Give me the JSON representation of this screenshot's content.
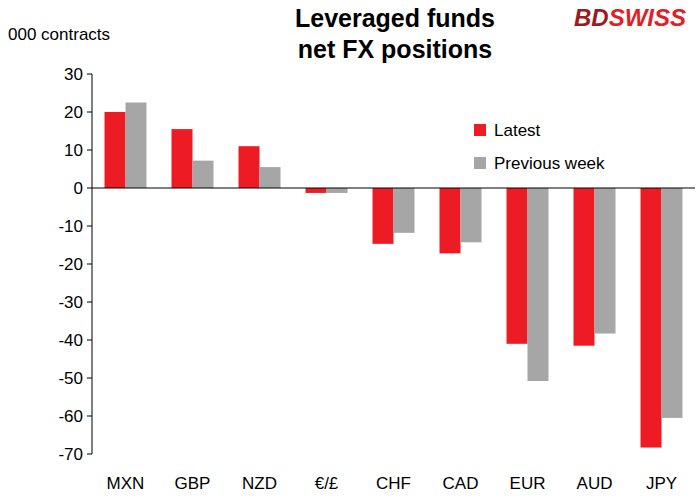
{
  "chart_data": {
    "type": "bar",
    "title": "Leveraged funds net FX positions",
    "ylabel": "000 contracts",
    "annotations": [
      "BDSWISS"
    ],
    "categories": [
      "MXN",
      "GBP",
      "NZD",
      "€/£",
      "CHF",
      "CAD",
      "EUR",
      "AUD",
      "JPY"
    ],
    "series": [
      {
        "name": "Latest",
        "color": "#ed1c24",
        "values": [
          20,
          15.5,
          11,
          -1.3,
          -14.7,
          -17.2,
          -41,
          -41.5,
          -68.3
        ]
      },
      {
        "name": "Previous week",
        "color": "#a6a6a6",
        "values": [
          22.5,
          7.2,
          5.5,
          -1.3,
          -11.8,
          -14.3,
          -50.8,
          -38.3,
          -60.5
        ]
      }
    ],
    "ylim": [
      -70,
      30
    ],
    "yticks": [
      -70,
      -60,
      -50,
      -40,
      -30,
      -20,
      -10,
      0,
      10,
      20,
      30
    ],
    "grid": false,
    "legend": "top-right",
    "data_labels": false
  }
}
